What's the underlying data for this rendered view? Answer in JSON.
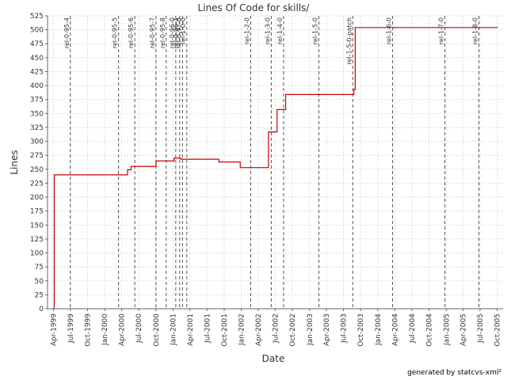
{
  "chart_data": {
    "type": "line",
    "title": "Lines Of Code for skills/",
    "xlabel": "Date",
    "ylabel": "Lines",
    "ylim": [
      0,
      525
    ],
    "yticks": [
      0,
      25,
      50,
      75,
      100,
      125,
      150,
      175,
      200,
      225,
      250,
      275,
      300,
      325,
      350,
      375,
      400,
      425,
      450,
      475,
      500,
      525
    ],
    "xlim": [
      "1999-03-01",
      "2005-11-01"
    ],
    "xticks": [
      {
        "label": "Apr-1999",
        "date": "1999-04-01"
      },
      {
        "label": "Jul-1999",
        "date": "1999-07-01"
      },
      {
        "label": "Oct-1999",
        "date": "1999-10-01"
      },
      {
        "label": "Jan-2000",
        "date": "2000-01-01"
      },
      {
        "label": "Apr-2000",
        "date": "2000-04-01"
      },
      {
        "label": "Jul-2000",
        "date": "2000-07-01"
      },
      {
        "label": "Oct-2000",
        "date": "2000-10-01"
      },
      {
        "label": "Jan-2001",
        "date": "2001-01-01"
      },
      {
        "label": "Apr-2001",
        "date": "2001-04-01"
      },
      {
        "label": "Jul-2001",
        "date": "2001-07-01"
      },
      {
        "label": "Oct-2001",
        "date": "2001-10-01"
      },
      {
        "label": "Jan-2002",
        "date": "2002-01-01"
      },
      {
        "label": "Apr-2002",
        "date": "2002-04-01"
      },
      {
        "label": "Jul-2002",
        "date": "2002-07-01"
      },
      {
        "label": "Oct-2002",
        "date": "2002-10-01"
      },
      {
        "label": "Jan-2003",
        "date": "2003-01-01"
      },
      {
        "label": "Apr-2003",
        "date": "2003-04-01"
      },
      {
        "label": "Jul-2003",
        "date": "2003-07-01"
      },
      {
        "label": "Oct-2003",
        "date": "2003-10-01"
      },
      {
        "label": "Jan-2004",
        "date": "2004-01-01"
      },
      {
        "label": "Apr-2004",
        "date": "2004-04-01"
      },
      {
        "label": "Jul-2004",
        "date": "2004-07-01"
      },
      {
        "label": "Oct-2004",
        "date": "2004-10-01"
      },
      {
        "label": "Jan-2005",
        "date": "2005-01-01"
      },
      {
        "label": "Apr-2005",
        "date": "2005-04-01"
      },
      {
        "label": "Jul-2005",
        "date": "2005-07-01"
      },
      {
        "label": "Oct-2005",
        "date": "2005-10-01"
      }
    ],
    "grid": true,
    "series": [
      {
        "color": "#cc0000",
        "step": true,
        "points": [
          {
            "x": "1999-04-05",
            "y": 0
          },
          {
            "x": "1999-04-06",
            "y": 240
          },
          {
            "x": "2000-05-01",
            "y": 240
          },
          {
            "x": "2000-05-02",
            "y": 249
          },
          {
            "x": "2000-05-20",
            "y": 249
          },
          {
            "x": "2000-05-21",
            "y": 255
          },
          {
            "x": "2000-10-01",
            "y": 255
          },
          {
            "x": "2000-10-02",
            "y": 265
          },
          {
            "x": "2001-01-05",
            "y": 265
          },
          {
            "x": "2001-01-06",
            "y": 270
          },
          {
            "x": "2001-02-10",
            "y": 270
          },
          {
            "x": "2001-02-11",
            "y": 268
          },
          {
            "x": "2001-09-01",
            "y": 268
          },
          {
            "x": "2001-09-02",
            "y": 263
          },
          {
            "x": "2001-12-25",
            "y": 263
          },
          {
            "x": "2001-12-26",
            "y": 253
          },
          {
            "x": "2002-05-25",
            "y": 253
          },
          {
            "x": "2002-05-26",
            "y": 317
          },
          {
            "x": "2002-07-10",
            "y": 317
          },
          {
            "x": "2002-07-11",
            "y": 357
          },
          {
            "x": "2002-08-25",
            "y": 357
          },
          {
            "x": "2002-08-26",
            "y": 384
          },
          {
            "x": "2003-08-25",
            "y": 384
          },
          {
            "x": "2003-08-26",
            "y": 393
          },
          {
            "x": "2003-09-01",
            "y": 393
          },
          {
            "x": "2003-09-02",
            "y": 504
          },
          {
            "x": "2005-10-01",
            "y": 505
          }
        ]
      }
    ],
    "releases": [
      {
        "label": "rel-0-95-4",
        "date": "1999-07-01"
      },
      {
        "label": "rel-0-95-5",
        "date": "2000-03-15"
      },
      {
        "label": "rel-0-95-6",
        "date": "2000-06-10"
      },
      {
        "label": "rel-0-95-7",
        "date": "2000-10-01"
      },
      {
        "label": "rel-0-95-8",
        "date": "2000-11-25"
      },
      {
        "label": "rel-0-96-0",
        "date": "2001-01-15"
      },
      {
        "label": "rel-0-96-1",
        "date": "2001-02-05"
      },
      {
        "label": "rel-0-97-0",
        "date": "2001-02-20"
      },
      {
        "label": "rel-1-0-0",
        "date": "2001-03-15"
      },
      {
        "label": "rel-1-2-0",
        "date": "2002-02-20"
      },
      {
        "label": "rel-1-3-0",
        "date": "2002-06-10"
      },
      {
        "label": "rel-1-4-0",
        "date": "2002-08-15"
      },
      {
        "label": "rel-1-5-0",
        "date": "2003-02-20"
      },
      {
        "label": "rel-1-5-0-patch",
        "date": "2003-08-20"
      },
      {
        "label": "rel-1-6-0",
        "date": "2004-03-20"
      },
      {
        "label": "rel-1-7-0",
        "date": "2004-12-25"
      },
      {
        "label": "rel-1-8-0",
        "date": "2005-06-25"
      }
    ]
  },
  "footer": {
    "credit": "generated by statcvs-xml²"
  }
}
